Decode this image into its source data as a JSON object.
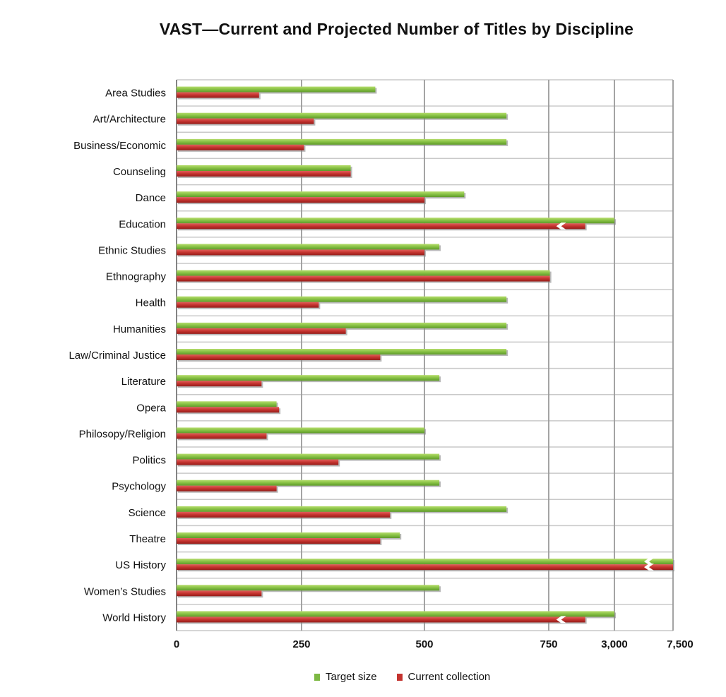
{
  "chart_data": {
    "type": "bar",
    "orientation": "horizontal",
    "title": "VAST—Current and Projected Number of Titles by Discipline",
    "xlabel": "",
    "ylabel": "",
    "x_ticks": [
      "0",
      "250",
      "500",
      "750",
      "3,000",
      "7,500"
    ],
    "axis_breaks": [
      "between 750 and 3,000",
      "between 3,000 and 7,500"
    ],
    "grid": true,
    "legend_position": "bottom",
    "categories": [
      "Area Studies",
      "Art/Architecture",
      "Business/Economic",
      "Counseling",
      "Dance",
      "Education",
      "Ethnic Studies",
      "Ethnography",
      "Health",
      "Humanities",
      "Law/Criminal Justice",
      "Literature",
      "Opera",
      "Philosopy/Religion",
      "Politics",
      "Psychology",
      "Science",
      "Theatre",
      "US History",
      "Women’s Studies",
      "World History"
    ],
    "series": [
      {
        "name": "Target size",
        "color": "#7db843",
        "values": [
          400,
          665,
          665,
          350,
          580,
          3000,
          530,
          790,
          665,
          665,
          665,
          530,
          200,
          500,
          530,
          530,
          665,
          450,
          7500,
          530,
          3000
        ]
      },
      {
        "name": "Current collection",
        "color": "#c4332f",
        "values": [
          165,
          275,
          255,
          350,
          500,
          2000,
          500,
          790,
          285,
          340,
          410,
          170,
          205,
          180,
          325,
          200,
          430,
          410,
          7500,
          170,
          2000
        ]
      }
    ],
    "breaks_marked": [
      [
        false,
        false
      ],
      [
        false,
        false
      ],
      [
        false,
        false
      ],
      [
        false,
        false
      ],
      [
        false,
        false
      ],
      [
        false,
        true
      ],
      [
        false,
        false
      ],
      [
        false,
        false
      ],
      [
        false,
        false
      ],
      [
        false,
        false
      ],
      [
        false,
        false
      ],
      [
        false,
        false
      ],
      [
        false,
        false
      ],
      [
        false,
        false
      ],
      [
        false,
        false
      ],
      [
        false,
        false
      ],
      [
        false,
        false
      ],
      [
        false,
        false
      ],
      [
        true,
        true
      ],
      [
        false,
        false
      ],
      [
        false,
        true
      ]
    ]
  }
}
